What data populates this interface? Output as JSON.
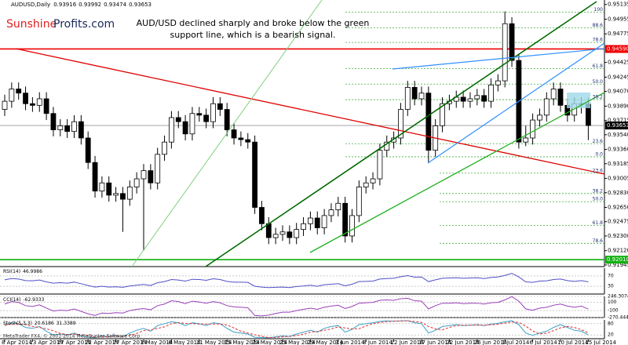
{
  "chart_data": [
    {
      "type": "candlestick",
      "title": "AUDUSD,Daily",
      "annotation": [
        "AUD/USD declined sharply and broke below the green",
        "support line, which is a bearish signal."
      ],
      "logo": [
        "Sunshine",
        "Profits.com"
      ],
      "footer": "MetaTrader FX4, © 2001-2014 MetaQuotes Software Corp.",
      "categories": [
        "8 Apr 2014",
        null,
        null,
        null,
        "13 Apr 2014",
        null,
        null,
        null,
        "17 Apr 2014",
        null,
        null,
        null,
        "22 Apr 2014",
        null,
        null,
        null,
        "27 Apr 2014",
        null,
        null,
        null,
        "1 May 2014",
        null,
        null,
        null,
        "6 May 2014",
        null,
        null,
        null,
        "11 May 2014",
        null,
        null,
        null,
        "15 May 2014",
        null,
        null,
        null,
        "20 May 2014",
        null,
        null,
        null,
        "25 May 2014",
        null,
        null,
        null,
        "29 May 2014",
        null,
        null,
        null,
        "3 Jun 2014",
        null,
        null,
        null,
        "8 Jun 2014",
        null,
        null,
        null,
        "12 Jun 2014",
        null,
        null,
        null,
        "17 Jun 2014",
        null,
        null,
        null,
        "22 Jun 2014",
        null,
        null,
        null,
        "26 Jun 2014",
        null,
        null,
        null,
        "1 Jul 2014",
        null,
        null,
        null,
        "6 Jul 2014",
        null,
        null,
        null,
        "10 Jul 2014",
        null,
        null,
        null,
        "15 Jul 2014"
      ],
      "open": [
        0.9385,
        0.9395,
        0.941,
        0.9405,
        0.9392,
        0.939,
        0.9398,
        0.938,
        0.936,
        0.9365,
        0.9358,
        0.937,
        0.935,
        0.932,
        0.9285,
        0.9295,
        0.928,
        0.9282,
        0.9275,
        0.929,
        0.93,
        0.931,
        0.9295,
        0.933,
        0.9345,
        0.9375,
        0.937,
        0.9355,
        0.938,
        0.9378,
        0.937,
        0.9392,
        0.9385,
        0.936,
        0.935,
        0.9348,
        0.9345,
        0.9265,
        0.9245,
        0.9228,
        0.9232,
        0.9235,
        0.9228,
        0.9238,
        0.9245,
        0.9252,
        0.924,
        0.9255,
        0.9262,
        0.927,
        0.923,
        0.9255,
        0.929,
        0.9295,
        0.93,
        0.9335,
        0.9345,
        0.935,
        0.9385,
        0.9412,
        0.9398,
        0.9405,
        0.9335,
        0.9365,
        0.9392,
        0.9395,
        0.94,
        0.9395,
        0.9398,
        0.9402,
        0.9395,
        0.9415,
        0.942,
        0.949,
        0.9445,
        0.9345,
        0.935,
        0.9372,
        0.9378,
        0.9398,
        0.941,
        0.939,
        0.9378,
        0.9392,
        0.93916
      ],
      "high": [
        0.9403,
        0.9418,
        0.9418,
        0.9413,
        0.94,
        0.9406,
        0.9406,
        0.9388,
        0.9373,
        0.9373,
        0.9378,
        0.9378,
        0.9358,
        0.9328,
        0.9303,
        0.9303,
        0.929,
        0.929,
        0.9298,
        0.9308,
        0.9318,
        0.9318,
        0.9338,
        0.9353,
        0.9383,
        0.9383,
        0.9378,
        0.9388,
        0.9388,
        0.9386,
        0.94,
        0.94,
        0.9393,
        0.9368,
        0.9358,
        0.9356,
        0.9353,
        0.9273,
        0.9253,
        0.924,
        0.9243,
        0.9243,
        0.9246,
        0.9253,
        0.926,
        0.926,
        0.9263,
        0.927,
        0.9278,
        0.9278,
        0.9263,
        0.9298,
        0.9303,
        0.9308,
        0.9343,
        0.9353,
        0.9358,
        0.9393,
        0.942,
        0.942,
        0.9413,
        0.9413,
        0.9373,
        0.94,
        0.9403,
        0.9408,
        0.9408,
        0.9406,
        0.941,
        0.941,
        0.9423,
        0.9428,
        0.9505,
        0.9498,
        0.9453,
        0.9365,
        0.938,
        0.9386,
        0.9406,
        0.9418,
        0.9418,
        0.9398,
        0.94,
        0.94,
        0.93992
      ],
      "low": [
        0.9377,
        0.9387,
        0.9397,
        0.9384,
        0.9382,
        0.9382,
        0.9372,
        0.9352,
        0.9352,
        0.935,
        0.935,
        0.9342,
        0.9312,
        0.9277,
        0.9277,
        0.9272,
        0.9272,
        0.9235,
        0.9267,
        0.9282,
        0.9212,
        0.9287,
        0.9287,
        0.9322,
        0.9337,
        0.9362,
        0.9347,
        0.9347,
        0.937,
        0.9362,
        0.9362,
        0.9377,
        0.9352,
        0.9342,
        0.934,
        0.9337,
        0.9257,
        0.9237,
        0.922,
        0.922,
        0.9224,
        0.922,
        0.922,
        0.923,
        0.9237,
        0.9232,
        0.9232,
        0.9247,
        0.9254,
        0.9222,
        0.9222,
        0.9247,
        0.9282,
        0.9287,
        0.9292,
        0.9327,
        0.9337,
        0.9342,
        0.9377,
        0.939,
        0.939,
        0.932,
        0.9327,
        0.9357,
        0.9384,
        0.9387,
        0.9387,
        0.9387,
        0.939,
        0.9387,
        0.9387,
        0.9407,
        0.9412,
        0.9437,
        0.9337,
        0.934,
        0.9342,
        0.9364,
        0.937,
        0.939,
        0.9382,
        0.937,
        0.937,
        0.938,
        0.93474
      ],
      "close": [
        0.9395,
        0.941,
        0.9405,
        0.9392,
        0.939,
        0.9398,
        0.938,
        0.936,
        0.9365,
        0.9358,
        0.937,
        0.935,
        0.932,
        0.9285,
        0.9295,
        0.928,
        0.9282,
        0.9275,
        0.929,
        0.93,
        0.931,
        0.9295,
        0.933,
        0.9345,
        0.9375,
        0.937,
        0.9355,
        0.938,
        0.9378,
        0.937,
        0.9392,
        0.9385,
        0.936,
        0.935,
        0.9348,
        0.9345,
        0.9265,
        0.9245,
        0.9228,
        0.9232,
        0.9235,
        0.9228,
        0.9238,
        0.9245,
        0.9252,
        0.924,
        0.9255,
        0.9262,
        0.927,
        0.923,
        0.9255,
        0.929,
        0.9295,
        0.93,
        0.9335,
        0.9345,
        0.935,
        0.9385,
        0.9412,
        0.9398,
        0.9405,
        0.9335,
        0.9365,
        0.9392,
        0.9395,
        0.94,
        0.9395,
        0.9398,
        0.9402,
        0.9395,
        0.9415,
        0.942,
        0.949,
        0.9445,
        0.9345,
        0.935,
        0.9372,
        0.9378,
        0.9398,
        0.941,
        0.939,
        0.9378,
        0.9392,
        0.93916,
        0.93653
      ],
      "up_color": "#ffffff",
      "down_color": "#000000",
      "ylim": [
        0.91925,
        0.9519
      ],
      "yticks": [
        0.95135,
        0.94955,
        0.94775,
        0.94425,
        0.94245,
        {
          "value": 0.9407,
          "label": "0.94070"
        },
        {
          "value": 0.9389,
          "label": "0.93890"
        },
        0.93715,
        {
          "value": 0.9354,
          "label": "0.93540"
        },
        {
          "value": 0.9336,
          "label": "0.93360"
        },
        0.93185,
        0.93005,
        {
          "value": 0.9283,
          "label": "0.92830"
        },
        {
          "value": 0.9265,
          "label": "0.92650"
        },
        0.92475,
        {
          "value": 0.923,
          "label": "0.92300"
        },
        {
          "value": 0.9212,
          "label": "0.92120"
        },
        0.91945
      ],
      "price_lines": [
        {
          "value": 0.9459,
          "label": "0.94590",
          "color": "#ee0000"
        },
        {
          "value": 0.9201,
          "label": "0.92010",
          "color": "#10b010"
        }
      ],
      "fib_levels": [
        {
          "label": "100",
          "value": 0.9504
        },
        {
          "label": "88.6",
          "value": 0.9485
        },
        {
          "label": "78.6",
          "value": 0.9467
        },
        {
          "label": "61.8",
          "value": 0.9435
        },
        {
          "label": "50.0",
          "value": 0.9416
        },
        {
          "label": "38.2",
          "value": 0.9397
        },
        {
          "label": "23.6",
          "value": 0.9343
        },
        {
          "label": "0.0",
          "value": 0.9327
        },
        {
          "label": "23.6",
          "value": 0.9307
        },
        {
          "label": "38.2",
          "value": 0.9282
        },
        {
          "label": "50.0",
          "value": 0.9272
        },
        {
          "label": "61.8",
          "value": 0.9243
        },
        {
          "label": "78.6",
          "value": 0.9221
        }
      ]
    },
    {
      "type": "line",
      "title": "RSI(14)",
      "color": "#5050c8",
      "ylim": [
        0,
        100
      ],
      "yticks": [
        70,
        30
      ],
      "values": [
        55,
        60,
        58,
        52,
        51,
        54,
        47,
        42,
        44,
        42,
        46,
        40,
        33,
        27,
        30,
        27,
        28,
        26,
        31,
        34,
        37,
        33,
        44,
        48,
        56,
        54,
        50,
        57,
        56,
        53,
        59,
        56,
        49,
        46,
        46,
        45,
        30,
        27,
        25,
        26,
        27,
        25,
        29,
        31,
        34,
        30,
        36,
        38,
        40,
        32,
        38,
        48,
        49,
        50,
        58,
        60,
        61,
        67,
        71,
        65,
        66,
        48,
        55,
        61,
        62,
        63,
        61,
        62,
        63,
        60,
        64,
        66,
        72,
        80,
        66,
        47,
        45,
        50,
        51,
        56,
        58,
        52,
        49,
        52,
        46.9986
      ]
    },
    {
      "type": "line",
      "title": "CCI(14)",
      "color": "#9a40b8",
      "ylim": [
        -270.4442,
        246.3074
      ],
      "yticks": [
        246.3074,
        100,
        -100,
        -270.4442
      ],
      "values": [
        60,
        120,
        100,
        20,
        0,
        40,
        -40,
        -110,
        -90,
        -100,
        -60,
        -120,
        -180,
        -220,
        -160,
        -170,
        -150,
        -160,
        -100,
        -70,
        -50,
        -80,
        20,
        60,
        140,
        120,
        70,
        130,
        110,
        80,
        120,
        90,
        20,
        -10,
        -20,
        -30,
        -220,
        -230,
        -210,
        -170,
        -140,
        -140,
        -100,
        -70,
        -40,
        -70,
        -20,
        10,
        30,
        -50,
        0,
        80,
        90,
        100,
        150,
        160,
        150,
        190,
        200,
        140,
        130,
        -60,
        20,
        80,
        80,
        90,
        70,
        80,
        80,
        60,
        90,
        100,
        160,
        240,
        130,
        -60,
        -90,
        -40,
        -20,
        30,
        60,
        10,
        -20,
        10,
        -62.9333
      ]
    },
    {
      "type": "line",
      "title": "Stoch(5,3,3)",
      "ylim": [
        0,
        100
      ],
      "yticks": [
        80,
        20
      ],
      "series": [
        {
          "color": "#3aa0c8",
          "dashed": false,
          "values": [
            70,
            85,
            80,
            60,
            55,
            65,
            40,
            20,
            25,
            20,
            30,
            15,
            8,
            5,
            15,
            12,
            15,
            10,
            30,
            45,
            55,
            40,
            70,
            80,
            90,
            85,
            70,
            85,
            80,
            70,
            85,
            80,
            55,
            35,
            30,
            25,
            8,
            6,
            5,
            10,
            15,
            12,
            25,
            35,
            45,
            35,
            55,
            65,
            70,
            35,
            50,
            75,
            80,
            85,
            92,
            95,
            93,
            95,
            96,
            85,
            80,
            30,
            45,
            65,
            70,
            75,
            70,
            72,
            75,
            70,
            78,
            82,
            90,
            95,
            75,
            30,
            18,
            30,
            40,
            60,
            75,
            60,
            45,
            40,
            20.6186
          ]
        },
        {
          "color": "#e03030",
          "dashed": true,
          "values": [
            72,
            78,
            78,
            75,
            65,
            60,
            53,
            42,
            28,
            22,
            25,
            22,
            18,
            9,
            9,
            11,
            14,
            12,
            18,
            28,
            43,
            47,
            55,
            63,
            80,
            85,
            82,
            80,
            78,
            78,
            78,
            78,
            73,
            57,
            40,
            30,
            21,
            13,
            6,
            7,
            10,
            12,
            17,
            24,
            35,
            38,
            45,
            52,
            63,
            57,
            52,
            53,
            68,
            80,
            86,
            91,
            93,
            94,
            95,
            92,
            87,
            65,
            52,
            47,
            60,
            70,
            72,
            72,
            72,
            72,
            74,
            77,
            83,
            89,
            87,
            67,
            41,
            26,
            29,
            43,
            58,
            65,
            60,
            48,
            31.3389
          ]
        }
      ]
    }
  ]
}
